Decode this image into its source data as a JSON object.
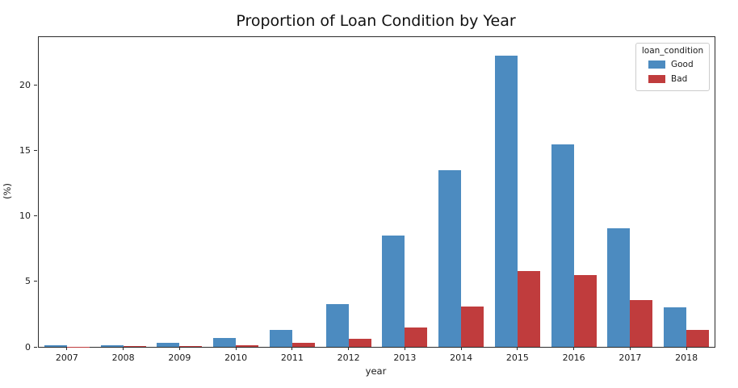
{
  "figure": {
    "title": "Proportion of Loan Condition by Year"
  },
  "chart_data": {
    "type": "bar",
    "title": "Proportion of Loan Condition by Year",
    "xlabel": "year",
    "ylabel": "(%)",
    "categories": [
      "2007",
      "2008",
      "2009",
      "2010",
      "2011",
      "2012",
      "2013",
      "2014",
      "2015",
      "2016",
      "2017",
      "2018"
    ],
    "series": [
      {
        "name": "Good",
        "color": "#4C8BC0",
        "values": [
          0.1,
          0.15,
          0.3,
          0.7,
          1.3,
          3.3,
          8.5,
          13.5,
          22.3,
          15.5,
          9.1,
          3.0
        ]
      },
      {
        "name": "Bad",
        "color": "#C03C3D",
        "values": [
          0.02,
          0.07,
          0.08,
          0.1,
          0.3,
          0.6,
          1.5,
          3.1,
          5.8,
          5.5,
          3.6,
          1.3
        ]
      }
    ],
    "legend_title": "loan_condition",
    "legend_position": "upper right",
    "ylim": [
      0,
      23.7
    ],
    "yticks": [
      0,
      5,
      10,
      15,
      20
    ],
    "grid": false,
    "axis_color": "#2b2b2b"
  }
}
